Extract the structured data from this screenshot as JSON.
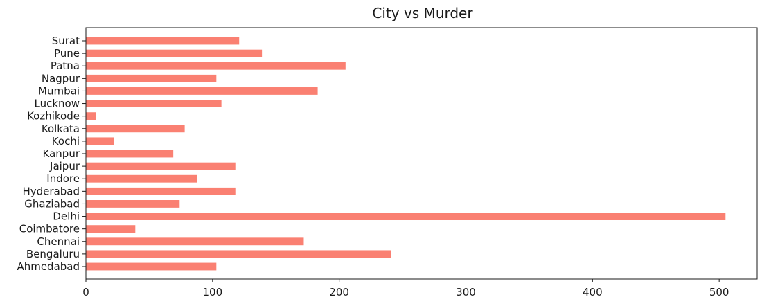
{
  "chart_data": {
    "type": "bar",
    "orientation": "horizontal",
    "title": "City vs Murder",
    "xlabel": "",
    "ylabel": "",
    "categories": [
      "Ahmedabad",
      "Bengaluru",
      "Chennai",
      "Coimbatore",
      "Delhi",
      "Ghaziabad",
      "Hyderabad",
      "Indore",
      "Jaipur",
      "Kanpur",
      "Kochi",
      "Kolkata",
      "Kozhikode",
      "Lucknow",
      "Mumbai",
      "Nagpur",
      "Patna",
      "Pune",
      "Surat"
    ],
    "values": [
      103,
      241,
      172,
      39,
      505,
      74,
      118,
      88,
      118,
      69,
      22,
      78,
      8,
      107,
      183,
      103,
      205,
      139,
      121
    ],
    "xlim": [
      0,
      530
    ],
    "xticks": [
      0,
      100,
      200,
      300,
      400,
      500
    ],
    "bar_color": "#fa8072",
    "grid": false,
    "legend": "none"
  }
}
